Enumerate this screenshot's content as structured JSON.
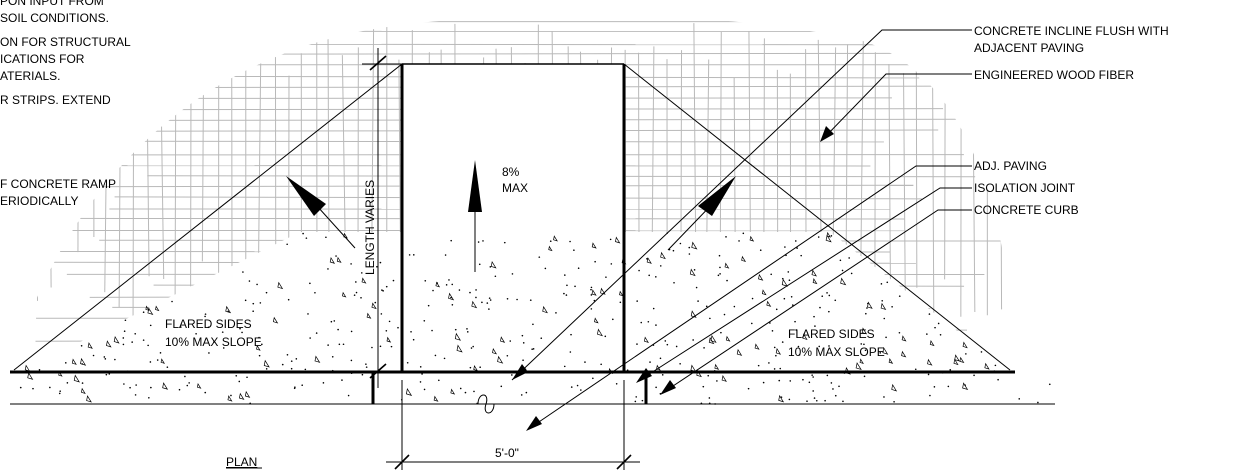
{
  "notes_left": [
    "PON INPUT FROM",
    "SOIL CONDITIONS.",
    "ON FOR STRUCTURAL",
    "ICATIONS FOR",
    "ATERIALS.",
    "R STRIPS. EXTEND"
  ],
  "note_ramp": [
    "F CONCRETE RAMP",
    "ERIODICALLY"
  ],
  "callouts": {
    "incline_1": "CONCRETE INCLINE FLUSH WITH",
    "incline_2": "ADJACENT PAVING",
    "wood_fiber": "ENGINEERED WOOD FIBER",
    "adj_paving": "ADJ. PAVING",
    "isolation_joint": "ISOLATION JOINT",
    "concrete_curb": "CONCRETE CURB"
  },
  "labels": {
    "length_varies": "LENGTH VARIES",
    "slope_1": "8%",
    "slope_2": "MAX",
    "flared_left_1": "FLARED SIDES",
    "flared_left_2": "10% MAX SLOPE",
    "flared_right_1": "FLARED SIDES",
    "flared_right_2": "10% MAX SLOPE",
    "width_dim": "5'-0\"",
    "view_title": "PLAN"
  },
  "colors": {
    "line": "#000000",
    "hatch": "#b9b9b9",
    "background": "#ffffff"
  }
}
